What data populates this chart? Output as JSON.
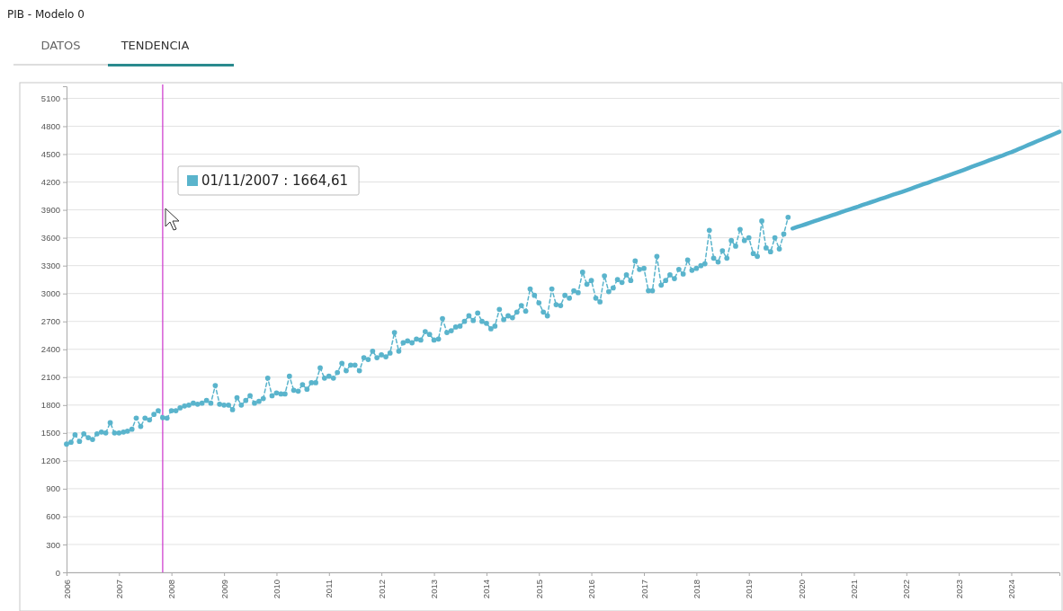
{
  "chart_data": {
    "type": "line",
    "title": "PIB - Modelo 0",
    "annotations": [
      "DATOS",
      "TENDENCIA",
      "01/11/2007 : 1664,61"
    ],
    "ref_lines": [
      {
        "axis": "x",
        "value": "2007-11",
        "color": "#cc33cc"
      }
    ],
    "xlim": [
      "2006-01",
      "2024-12"
    ],
    "xticks": [
      "2006",
      "2007",
      "2008",
      "2009",
      "2010",
      "2011",
      "2012",
      "2013",
      "2014",
      "2015",
      "2016",
      "2017",
      "2018",
      "2019",
      "2020",
      "2021",
      "2022",
      "2023",
      "2024"
    ],
    "ylim": [
      0,
      5230
    ],
    "yticks": [
      0,
      300,
      600,
      900,
      1200,
      1500,
      1800,
      2100,
      2400,
      2700,
      3000,
      3300,
      3600,
      3900,
      4200,
      4500,
      4800,
      5100
    ],
    "grid": "y",
    "marker": "circle",
    "series": [
      {
        "color": "#5ab4cc",
        "line_style": "dashed",
        "x": [
          "2006-01",
          "2006-02",
          "2006-03",
          "2006-04",
          "2006-05",
          "2006-06",
          "2006-07",
          "2006-08",
          "2006-09",
          "2006-10",
          "2006-11",
          "2006-12",
          "2007-01",
          "2007-02",
          "2007-03",
          "2007-04",
          "2007-05",
          "2007-06",
          "2007-07",
          "2007-08",
          "2007-09",
          "2007-10",
          "2007-11",
          "2007-12",
          "2008-01",
          "2008-02",
          "2008-03",
          "2008-04",
          "2008-05",
          "2008-06",
          "2008-07",
          "2008-08",
          "2008-09",
          "2008-10",
          "2008-11",
          "2008-12",
          "2009-01",
          "2009-02",
          "2009-03",
          "2009-04",
          "2009-05",
          "2009-06",
          "2009-07",
          "2009-08",
          "2009-09",
          "2009-10",
          "2009-11",
          "2009-12",
          "2010-01",
          "2010-02",
          "2010-03",
          "2010-04",
          "2010-05",
          "2010-06",
          "2010-07",
          "2010-08",
          "2010-09",
          "2010-10",
          "2010-11",
          "2010-12",
          "2011-01",
          "2011-02",
          "2011-03",
          "2011-04",
          "2011-05",
          "2011-06",
          "2011-07",
          "2011-08",
          "2011-09",
          "2011-10",
          "2011-11",
          "2011-12",
          "2012-01",
          "2012-02",
          "2012-03",
          "2012-04",
          "2012-05",
          "2012-06",
          "2012-07",
          "2012-08",
          "2012-09",
          "2012-10",
          "2012-11",
          "2012-12",
          "2013-01",
          "2013-02",
          "2013-03",
          "2013-04",
          "2013-05",
          "2013-06",
          "2013-07",
          "2013-08",
          "2013-09",
          "2013-10",
          "2013-11",
          "2013-12",
          "2014-01",
          "2014-02",
          "2014-03",
          "2014-04",
          "2014-05",
          "2014-06",
          "2014-07",
          "2014-08",
          "2014-09",
          "2014-10",
          "2014-11",
          "2014-12",
          "2015-01",
          "2015-02",
          "2015-03",
          "2015-04",
          "2015-05",
          "2015-06",
          "2015-07",
          "2015-08",
          "2015-09",
          "2015-10",
          "2015-11",
          "2015-12",
          "2016-01",
          "2016-02",
          "2016-03",
          "2016-04",
          "2016-05",
          "2016-06",
          "2016-07",
          "2016-08",
          "2016-09",
          "2016-10",
          "2016-11",
          "2016-12",
          "2017-01",
          "2017-02",
          "2017-03",
          "2017-04",
          "2017-05",
          "2017-06",
          "2017-07",
          "2017-08",
          "2017-09",
          "2017-10",
          "2017-11",
          "2017-12",
          "2018-01",
          "2018-02",
          "2018-03",
          "2018-04",
          "2018-05",
          "2018-06",
          "2018-07",
          "2018-08",
          "2018-09",
          "2018-10",
          "2018-11",
          "2018-12",
          "2019-01",
          "2019-02",
          "2019-03",
          "2019-04",
          "2019-05",
          "2019-06",
          "2019-07",
          "2019-08",
          "2019-09",
          "2019-10"
        ],
        "values": [
          1380,
          1400,
          1480,
          1410,
          1490,
          1450,
          1430,
          1490,
          1510,
          1500,
          1610,
          1500,
          1500,
          1510,
          1520,
          1540,
          1660,
          1570,
          1660,
          1640,
          1700,
          1740,
          1664.61,
          1660,
          1740,
          1740,
          1770,
          1790,
          1800,
          1820,
          1810,
          1820,
          1850,
          1820,
          2010,
          1810,
          1800,
          1800,
          1750,
          1880,
          1800,
          1850,
          1900,
          1820,
          1840,
          1870,
          2090,
          1900,
          1930,
          1920,
          1920,
          2110,
          1960,
          1950,
          2020,
          1970,
          2040,
          2040,
          2200,
          2090,
          2110,
          2090,
          2150,
          2250,
          2170,
          2230,
          2230,
          2170,
          2310,
          2290,
          2380,
          2310,
          2340,
          2320,
          2360,
          2580,
          2380,
          2470,
          2490,
          2470,
          2510,
          2500,
          2590,
          2560,
          2500,
          2510,
          2730,
          2580,
          2600,
          2640,
          2650,
          2700,
          2760,
          2710,
          2790,
          2700,
          2680,
          2620,
          2650,
          2830,
          2720,
          2760,
          2740,
          2800,
          2870,
          2810,
          3050,
          2980,
          2900,
          2800,
          2760,
          3050,
          2880,
          2870,
          2980,
          2950,
          3030,
          3010,
          3230,
          3100,
          3140,
          2950,
          2910,
          3190,
          3020,
          3060,
          3150,
          3120,
          3200,
          3140,
          3350,
          3260,
          3270,
          3030,
          3030,
          3400,
          3090,
          3140,
          3200,
          3160,
          3260,
          3210,
          3360,
          3250,
          3270,
          3300,
          3320,
          3680,
          3380,
          3340,
          3460,
          3380,
          3570,
          3510,
          3690,
          3570,
          3600,
          3430,
          3400,
          3780,
          3490,
          3450,
          3600,
          3480,
          3640,
          3820
        ]
      },
      {
        "color": "#52aecb",
        "line_style": "solid",
        "marker": "none",
        "x": [
          "2019-11",
          "2019-12",
          "2020-01",
          "2020-02",
          "2020-03",
          "2020-04",
          "2020-05",
          "2020-06",
          "2020-07",
          "2020-08",
          "2020-09",
          "2020-10",
          "2020-11",
          "2020-12",
          "2021-01",
          "2021-02",
          "2021-03",
          "2021-04",
          "2021-05",
          "2021-06",
          "2021-07",
          "2021-08",
          "2021-09",
          "2021-10",
          "2021-11",
          "2021-12",
          "2022-01",
          "2022-02",
          "2022-03",
          "2022-04",
          "2022-05",
          "2022-06",
          "2022-07",
          "2022-08",
          "2022-09",
          "2022-10",
          "2022-11",
          "2022-12",
          "2023-01",
          "2023-02",
          "2023-03",
          "2023-04",
          "2023-05",
          "2023-06",
          "2023-07",
          "2023-08",
          "2023-09",
          "2023-10",
          "2023-11",
          "2023-12",
          "2024-01",
          "2024-02",
          "2024-03",
          "2024-04",
          "2024-05",
          "2024-06",
          "2024-07",
          "2024-08",
          "2024-09",
          "2024-10",
          "2024-11",
          "2024-12"
        ],
        "values": [
          3700,
          3715,
          3730,
          3746,
          3762,
          3778,
          3794,
          3810,
          3825,
          3841,
          3857,
          3873,
          3889,
          3904,
          3920,
          3936,
          3952,
          3968,
          3983,
          3999,
          4015,
          4031,
          4047,
          4063,
          4078,
          4094,
          4110,
          4127,
          4143,
          4160,
          4177,
          4193,
          4210,
          4227,
          4243,
          4260,
          4277,
          4293,
          4310,
          4328,
          4345,
          4363,
          4380,
          4398,
          4415,
          4433,
          4450,
          4468,
          4485,
          4503,
          4520,
          4540,
          4560,
          4580,
          4600,
          4620,
          4640,
          4660,
          4680,
          4700,
          4720,
          4740
        ]
      }
    ]
  }
}
